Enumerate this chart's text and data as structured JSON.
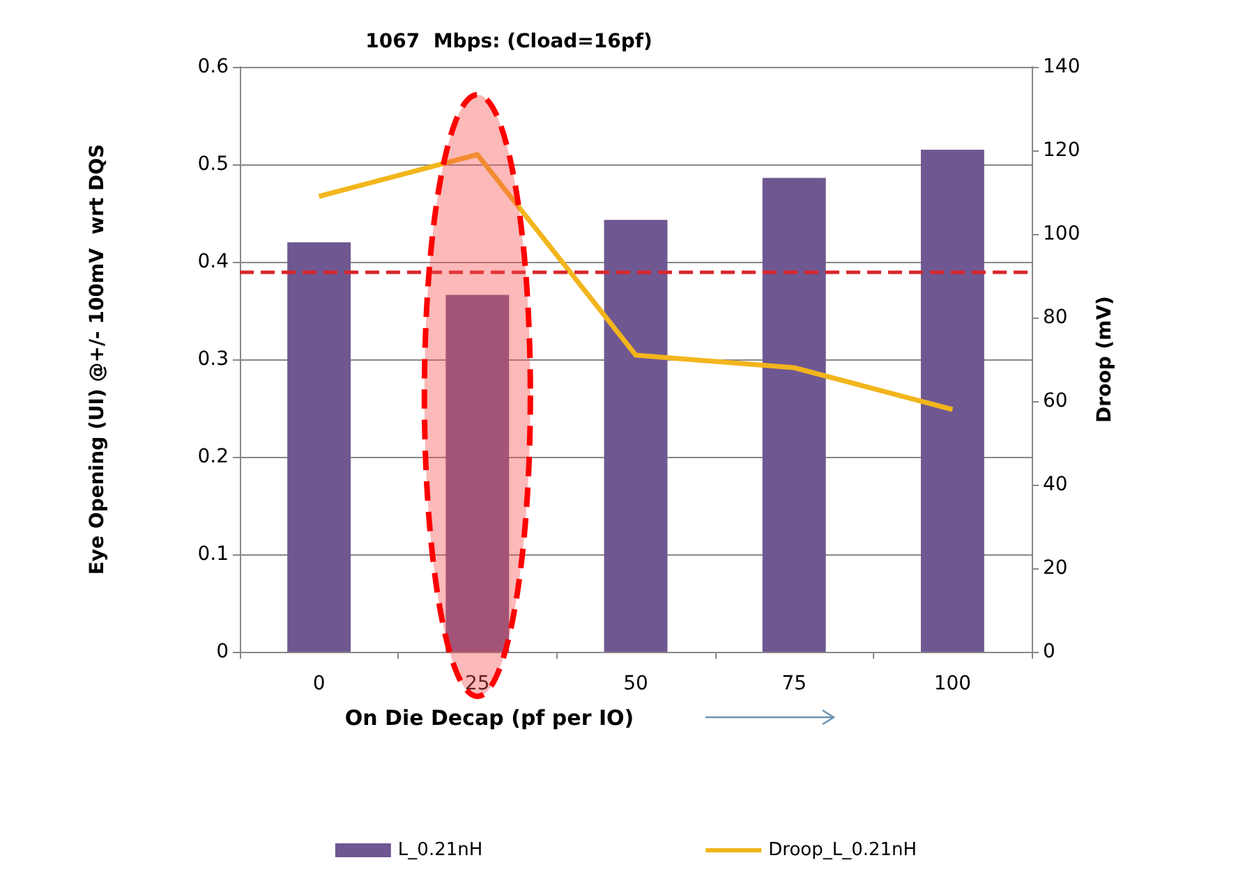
{
  "chart_data": {
    "type": "bar",
    "title": "1067  Mbps: (Cload=16pf)",
    "xlabel": "On Die Decap (pf per IO)",
    "ylabel": "Eye Opening (UI) @+/- 100mV  wrt DQS",
    "y2label": "Droop (mV)",
    "categories": [
      "0",
      "25",
      "50",
      "75",
      "100"
    ],
    "series": [
      {
        "name": "L_0.21nH",
        "color": "#6f5891",
        "values": [
          0.42,
          0.366,
          0.443,
          0.486,
          0.515
        ]
      },
      {
        "name": "Droop_L_0.21nH",
        "type": "line",
        "axis": "y2",
        "color": "#f2b51c",
        "values": [
          109,
          119,
          71,
          68,
          58
        ]
      }
    ],
    "ylim": [
      0,
      0.6
    ],
    "yticks": [
      0,
      0.1,
      0.2,
      0.3,
      0.4,
      0.5,
      0.6
    ],
    "y2lim": [
      0,
      140
    ],
    "y2ticks": [
      0,
      20,
      40,
      60,
      80,
      100,
      120,
      140
    ],
    "ref_lines": [
      {
        "axis": "y",
        "value": 0.39,
        "color": "#d9262b",
        "line_style": "dashed"
      }
    ],
    "grid": "y",
    "legend": "bottom",
    "marker": "none"
  }
}
